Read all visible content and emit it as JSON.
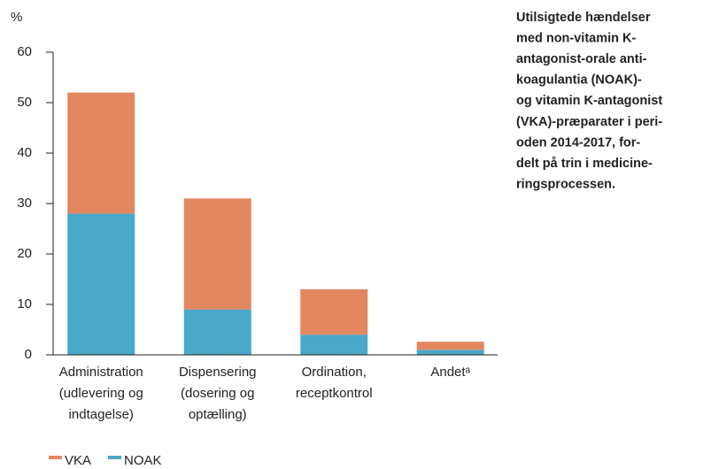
{
  "chart_data": {
    "type": "stacked_bar",
    "title": [
      "Utilsigtede hændelser",
      "med non-vitamin K-",
      "antagonist-orale anti-",
      "koagulantia (NOAK)-",
      "og vitamin K-antagonist",
      "(VKA)-præparater i peri-",
      "oden 2014-2017, for-",
      "delt på trin i medicine-",
      "ringsprocessen."
    ],
    "y_label": "%",
    "categories": [
      [
        "Administration",
        "(udlevering og",
        "indtagelse)"
      ],
      [
        "Dispensering",
        "(dosering og",
        "optælling)"
      ],
      [
        "Ordination,",
        "receptkontrol"
      ],
      [
        "Andetᵃ"
      ]
    ],
    "series": [
      {
        "name": "NOAK",
        "color": "#4aa8c9",
        "values": [
          28,
          9,
          4,
          1
        ]
      },
      {
        "name": "VKA",
        "color": "#e38760",
        "values": [
          24,
          22,
          9,
          1.6
        ]
      }
    ],
    "legend_order": [
      1,
      0
    ],
    "ylim": [
      0,
      60
    ],
    "yticks": [
      0,
      10,
      20,
      30,
      40,
      50,
      60
    ]
  }
}
